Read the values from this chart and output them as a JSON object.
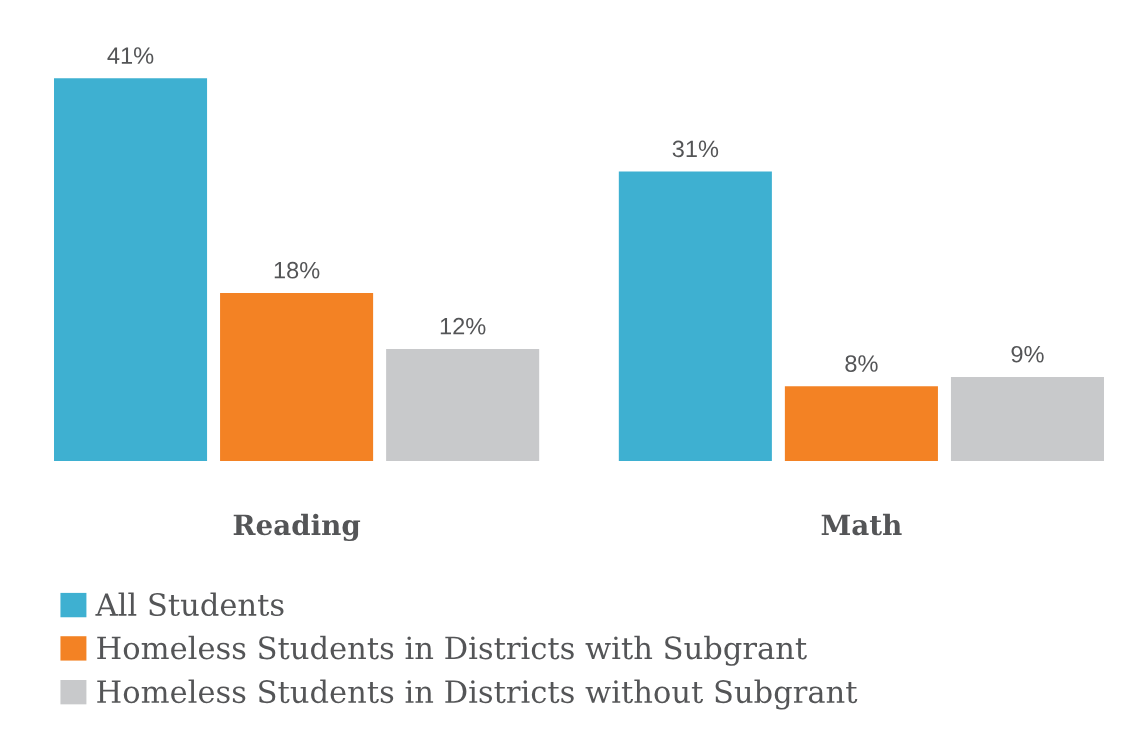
{
  "chart_data": {
    "type": "bar",
    "categories": [
      "Reading",
      "Math"
    ],
    "series": [
      {
        "name": "All Students",
        "color": "#3eb0d1",
        "values": [
          41,
          31
        ],
        "value_labels": [
          "41%",
          "31%"
        ]
      },
      {
        "name": "Homeless Students in Districts with Subgrant",
        "color": "#f38224",
        "values": [
          18,
          8
        ],
        "value_labels": [
          "18%",
          "8%"
        ]
      },
      {
        "name": "Homeless Students in Districts without Subgrant",
        "color": "#c8c9cb",
        "values": [
          12,
          9
        ],
        "value_labels": [
          "12%",
          "9%"
        ]
      }
    ],
    "tick_labels": "x",
    "legend": "bottom left"
  }
}
